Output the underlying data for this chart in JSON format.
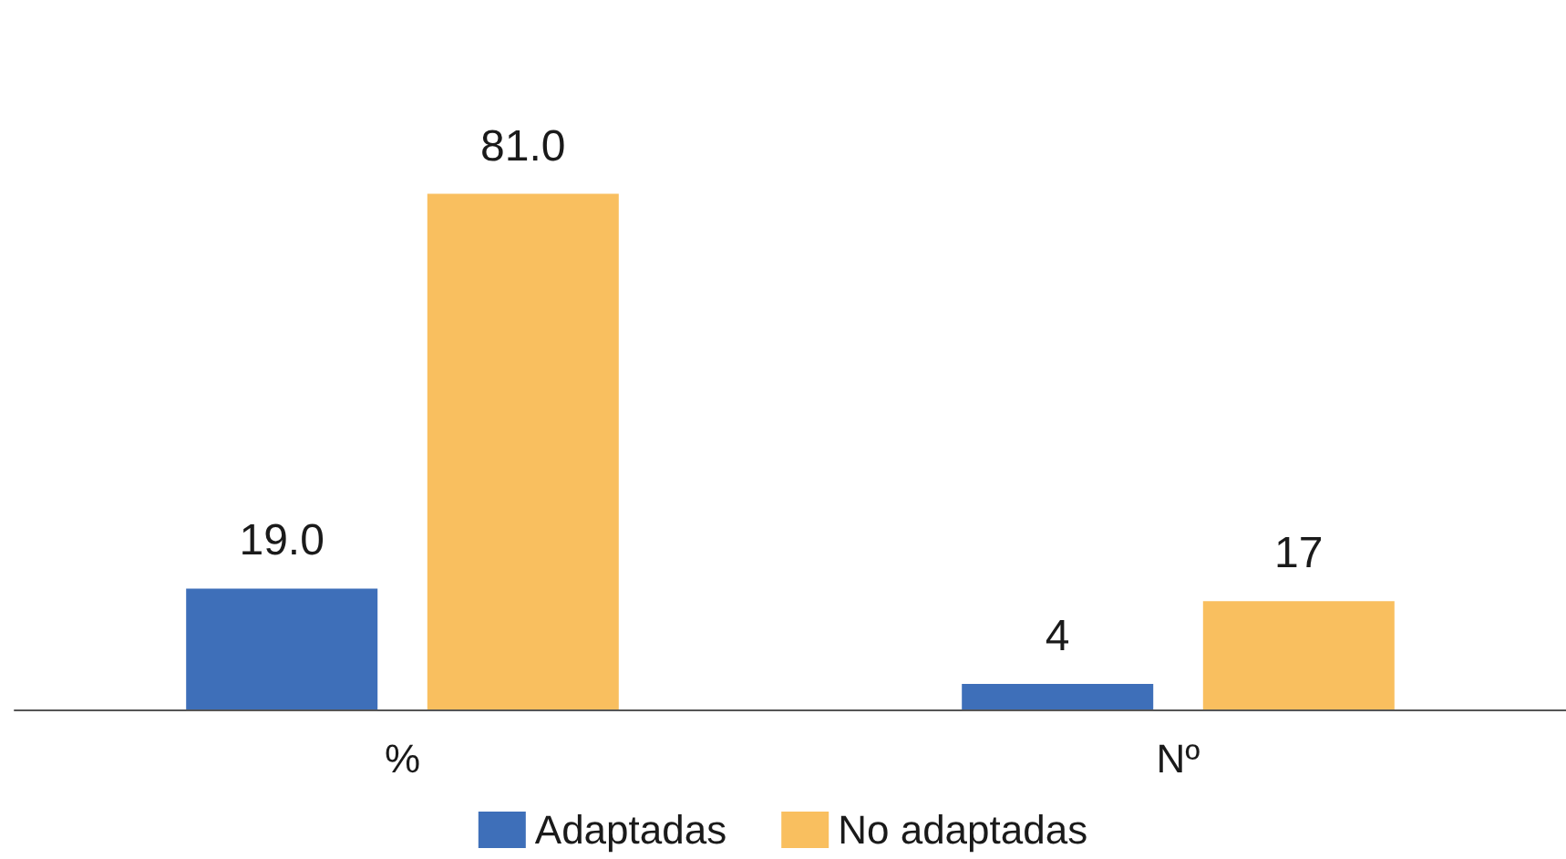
{
  "chart_data": {
    "type": "bar",
    "categories": [
      "%",
      "Nº"
    ],
    "series": [
      {
        "name": "Adaptadas",
        "color": "#3e6fb9",
        "values": [
          19.0,
          4
        ],
        "value_labels": [
          "19.0",
          "4"
        ]
      },
      {
        "name": "No adaptadas",
        "color": "#f9bf5f",
        "values": [
          81.0,
          17
        ],
        "value_labels": [
          "81.0",
          "17"
        ]
      }
    ],
    "legend": "bottom"
  }
}
